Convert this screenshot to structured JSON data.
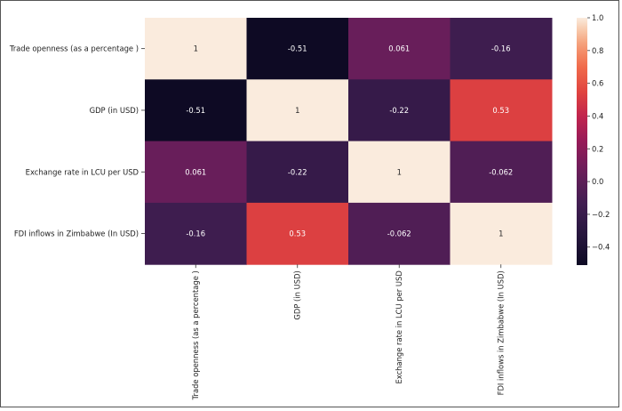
{
  "chart_data": {
    "type": "heatmap",
    "rows": [
      "Trade openness (as a percentage )",
      "GDP (in USD)",
      "Exchange rate in LCU per USD",
      "FDI inflows in Zimbabwe (In USD)"
    ],
    "columns": [
      "Trade openness (as a percentage )",
      "GDP (in USD)",
      "Exchange rate in LCU per USD",
      "FDI inflows in Zimbabwe (In USD)"
    ],
    "values": [
      [
        1,
        -0.51,
        0.061,
        -0.16
      ],
      [
        -0.51,
        1,
        -0.22,
        0.53
      ],
      [
        0.061,
        -0.22,
        1,
        -0.062
      ],
      [
        -0.16,
        0.53,
        -0.062,
        1
      ]
    ],
    "annotations": [
      [
        "1",
        "-0.51",
        "0.061",
        "-0.16"
      ],
      [
        "-0.51",
        "1",
        "-0.22",
        "0.53"
      ],
      [
        "0.061",
        "-0.22",
        "1",
        "-0.062"
      ],
      [
        "-0.16",
        "0.53",
        "-0.062",
        "1"
      ]
    ],
    "colormap": "rocket",
    "colorbar": {
      "range": [
        -0.51,
        1.0
      ],
      "ticks": [
        -0.4,
        -0.2,
        0.0,
        0.2,
        0.4,
        0.6,
        0.8,
        1.0
      ],
      "tick_labels": [
        "−0.4",
        "−0.2",
        "0.0",
        "0.2",
        "0.4",
        "0.6",
        "0.8",
        "1.0"
      ]
    }
  }
}
